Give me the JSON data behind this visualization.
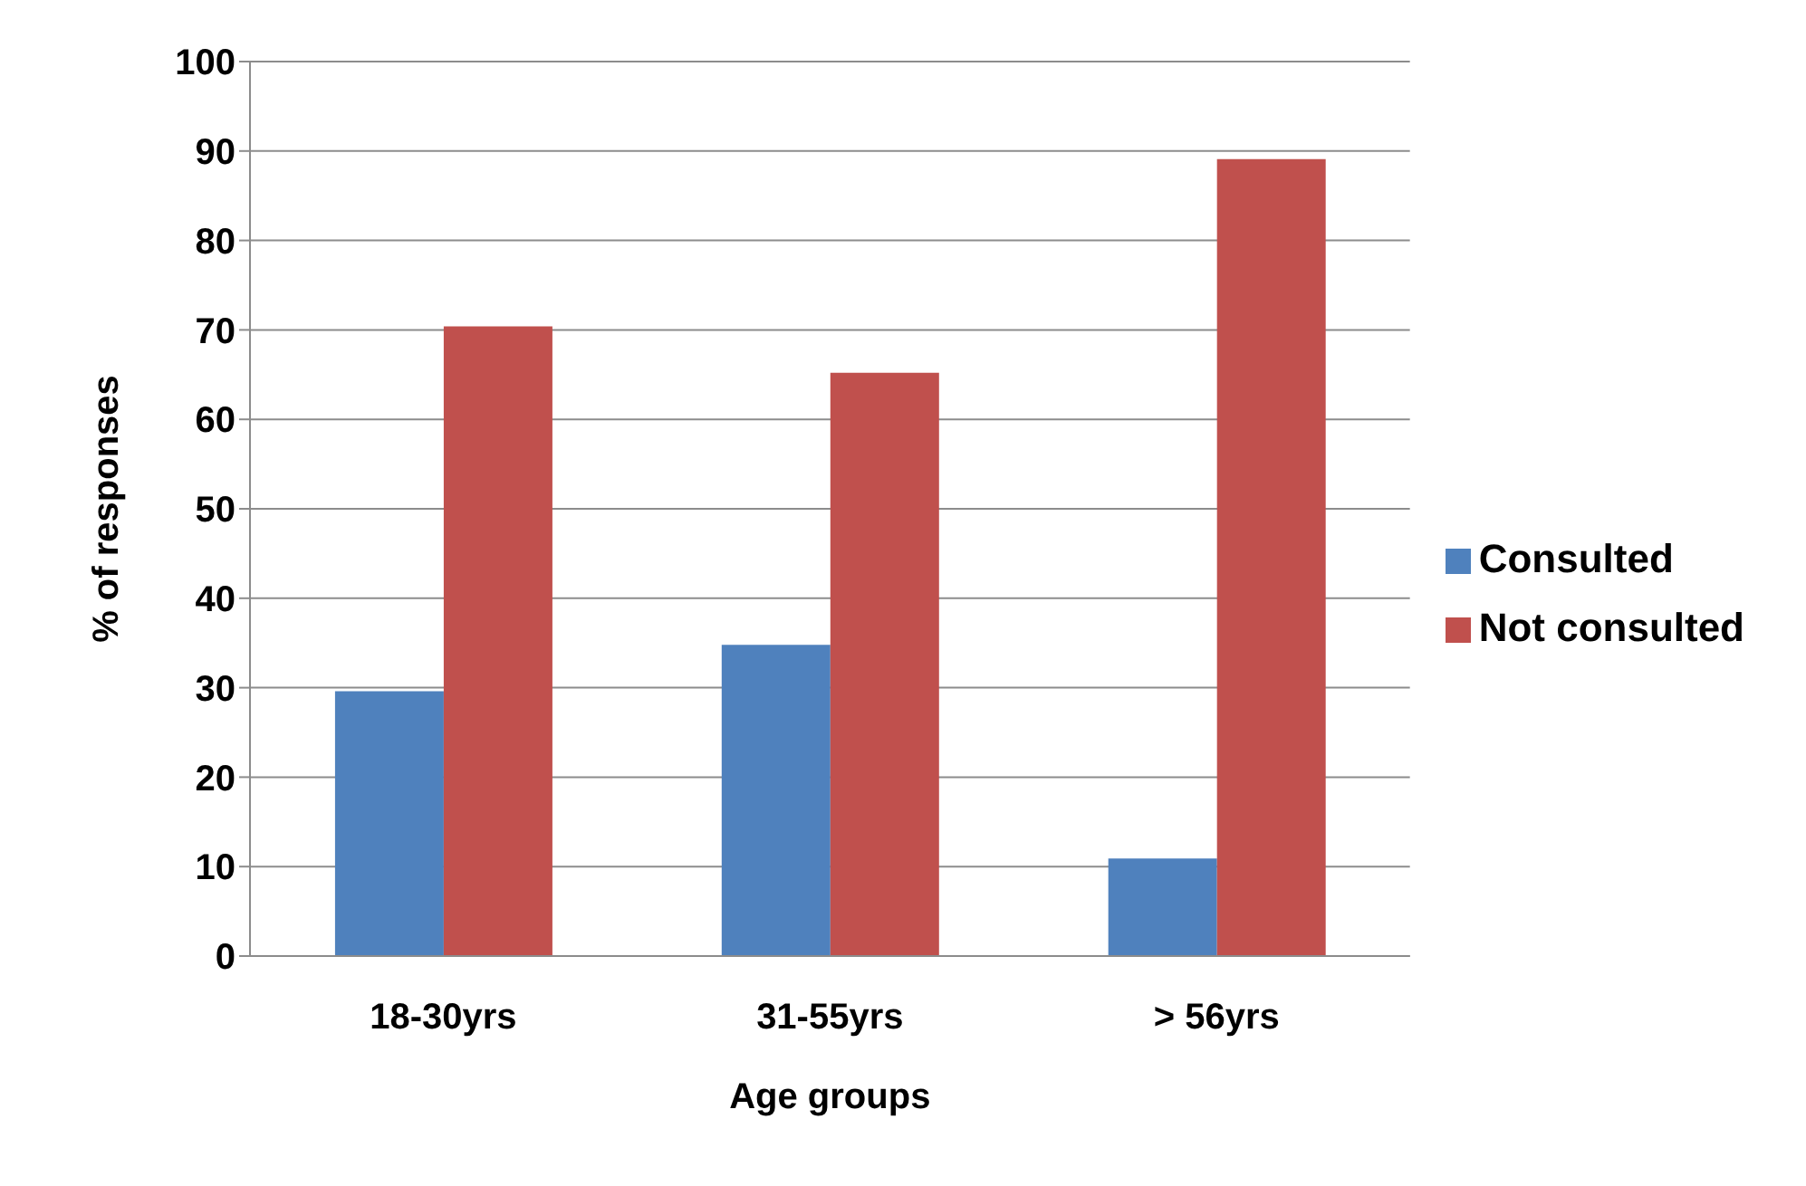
{
  "chart_data": {
    "type": "bar",
    "xlabel": "Age groups",
    "ylabel": "% of responses",
    "categories": [
      "18-30yrs",
      "31-55yrs",
      "> 56yrs"
    ],
    "series": [
      {
        "name": "Consulted",
        "color": "#4f81bd",
        "values": [
          29.6,
          34.8,
          10.9
        ]
      },
      {
        "name": "Not consulted",
        "color": "#c0504d",
        "values": [
          70.4,
          65.2,
          89.1
        ]
      }
    ],
    "ylim": [
      0,
      100
    ],
    "yticks": [
      0,
      10,
      20,
      30,
      40,
      50,
      60,
      70,
      80,
      90,
      100
    ],
    "grid": "y",
    "legend": "right"
  }
}
